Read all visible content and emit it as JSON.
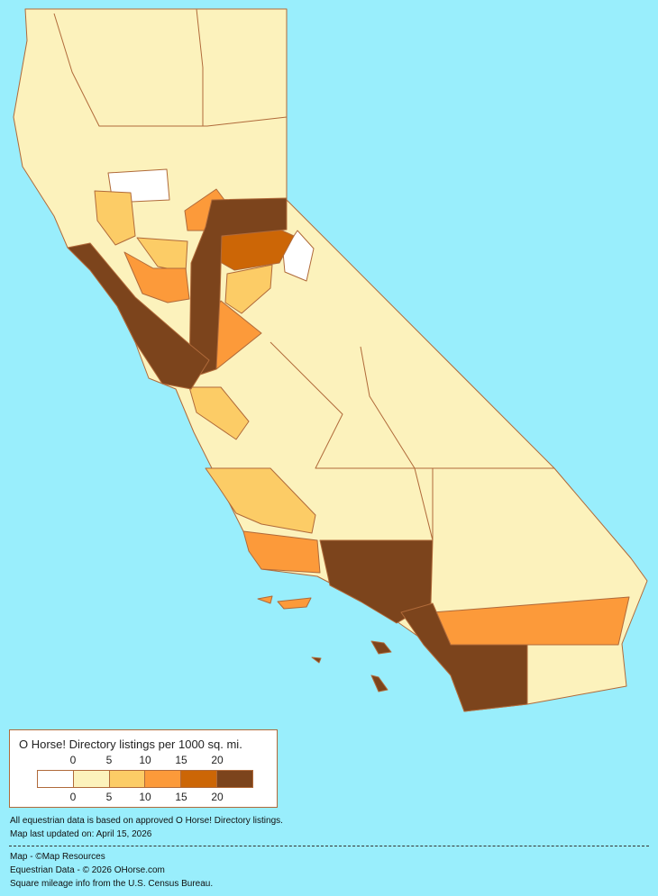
{
  "legend": {
    "title": "O Horse! Directory listings per 1000 sq. mi.",
    "top_ticks": [
      "0",
      "5",
      "10",
      "15",
      "20"
    ],
    "bottom_ticks": [
      "0",
      "5",
      "10",
      "15",
      "20"
    ],
    "bins": [
      {
        "range": "0",
        "color": "#ffffff"
      },
      {
        "range": "0-5",
        "color": "#fcf2bc"
      },
      {
        "range": "5-10",
        "color": "#fccc66"
      },
      {
        "range": "10-15",
        "color": "#fc9a3a"
      },
      {
        "range": "15-20",
        "color": "#cc6606"
      },
      {
        "range": "20+",
        "color": "#7c441c"
      }
    ]
  },
  "notes": {
    "line1": "All equestrian data is based on approved O Horse! Directory listings.",
    "line2": "Map last updated on: April 15, 2026",
    "credit1": "Map - ©Map Resources",
    "credit2": "Equestrian Data - © 2026 OHorse.com",
    "credit3": "Square mileage info from the U.S. Census Bureau."
  },
  "colors": {
    "background": "#99eefc",
    "border": "#b06a3a"
  }
}
